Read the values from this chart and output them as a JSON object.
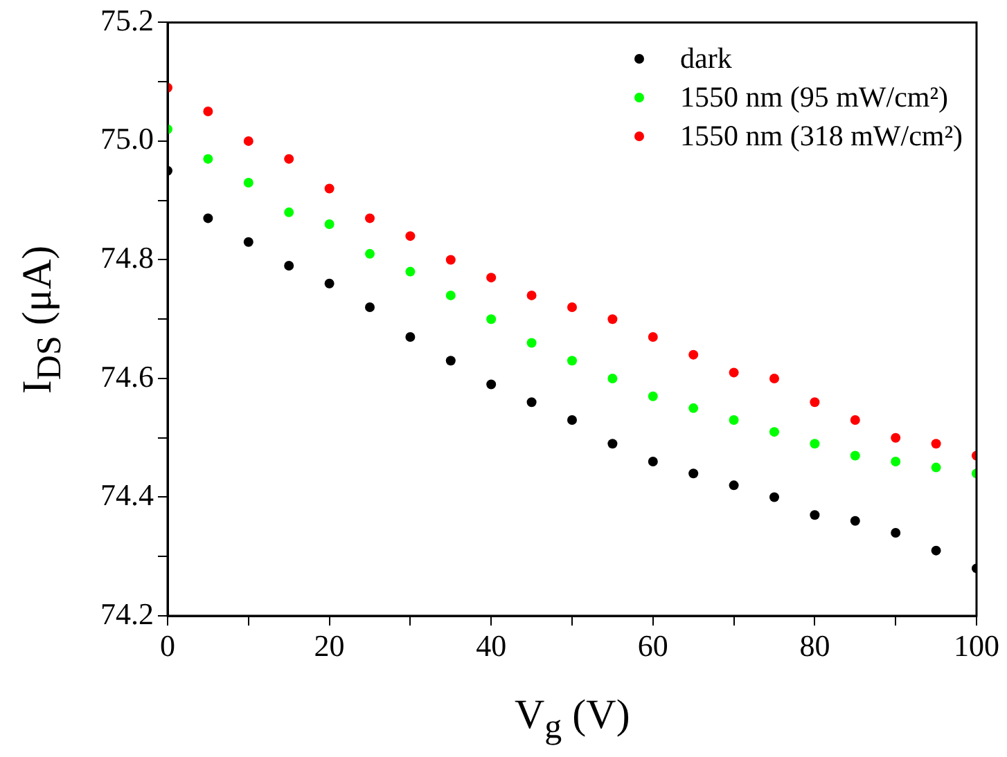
{
  "chart_data": {
    "type": "scatter",
    "xlabel": "V$_{g}$ (V)",
    "ylabel": "I$_{DS}$ (μA)",
    "x": [
      0,
      5,
      10,
      15,
      20,
      25,
      30,
      35,
      40,
      45,
      50,
      55,
      60,
      65,
      70,
      75,
      80,
      85,
      90,
      95,
      100
    ],
    "series": [
      {
        "name": "dark",
        "color": "#000000",
        "values": [
          74.95,
          74.87,
          74.83,
          74.79,
          74.76,
          74.72,
          74.67,
          74.63,
          74.59,
          74.56,
          74.53,
          74.49,
          74.46,
          74.44,
          74.42,
          74.4,
          74.37,
          74.36,
          74.34,
          74.31,
          74.28
        ]
      },
      {
        "name": "1550 nm (95 mW/cm²)",
        "color": "#00ff00",
        "values": [
          75.02,
          74.97,
          74.93,
          74.88,
          74.86,
          74.81,
          74.78,
          74.74,
          74.7,
          74.66,
          74.63,
          74.6,
          74.57,
          74.55,
          74.53,
          74.51,
          74.49,
          74.47,
          74.46,
          74.45,
          74.44
        ]
      },
      {
        "name": "1550 nm (318 mW/cm²)",
        "color": "#ff0000",
        "values": [
          75.09,
          75.05,
          75.0,
          74.97,
          74.92,
          74.87,
          74.84,
          74.8,
          74.77,
          74.74,
          74.72,
          74.7,
          74.67,
          74.64,
          74.61,
          74.6,
          74.56,
          74.53,
          74.5,
          74.49,
          74.47
        ]
      }
    ],
    "xlim": [
      0,
      100
    ],
    "xticks": [
      0,
      {
        "value": 10,
        "label": null
      },
      20,
      {
        "value": 30,
        "label": null
      },
      40,
      {
        "value": 50,
        "label": null
      },
      60,
      {
        "value": 70,
        "label": null
      },
      80,
      {
        "value": 90,
        "label": null
      },
      100
    ],
    "ylim": [
      74.2,
      75.2
    ],
    "yticks": [
      74.2,
      {
        "value": 74.3,
        "label": null
      },
      74.4,
      {
        "value": 74.5,
        "label": null
      },
      74.6,
      {
        "value": 74.7,
        "label": null
      },
      74.8,
      {
        "value": 74.9,
        "label": null
      },
      {
        "value": 75,
        "label": "75.0"
      },
      {
        "value": 75.1,
        "label": null
      },
      75.2
    ],
    "grid": false,
    "legend": "top right",
    "marker": "circle"
  }
}
